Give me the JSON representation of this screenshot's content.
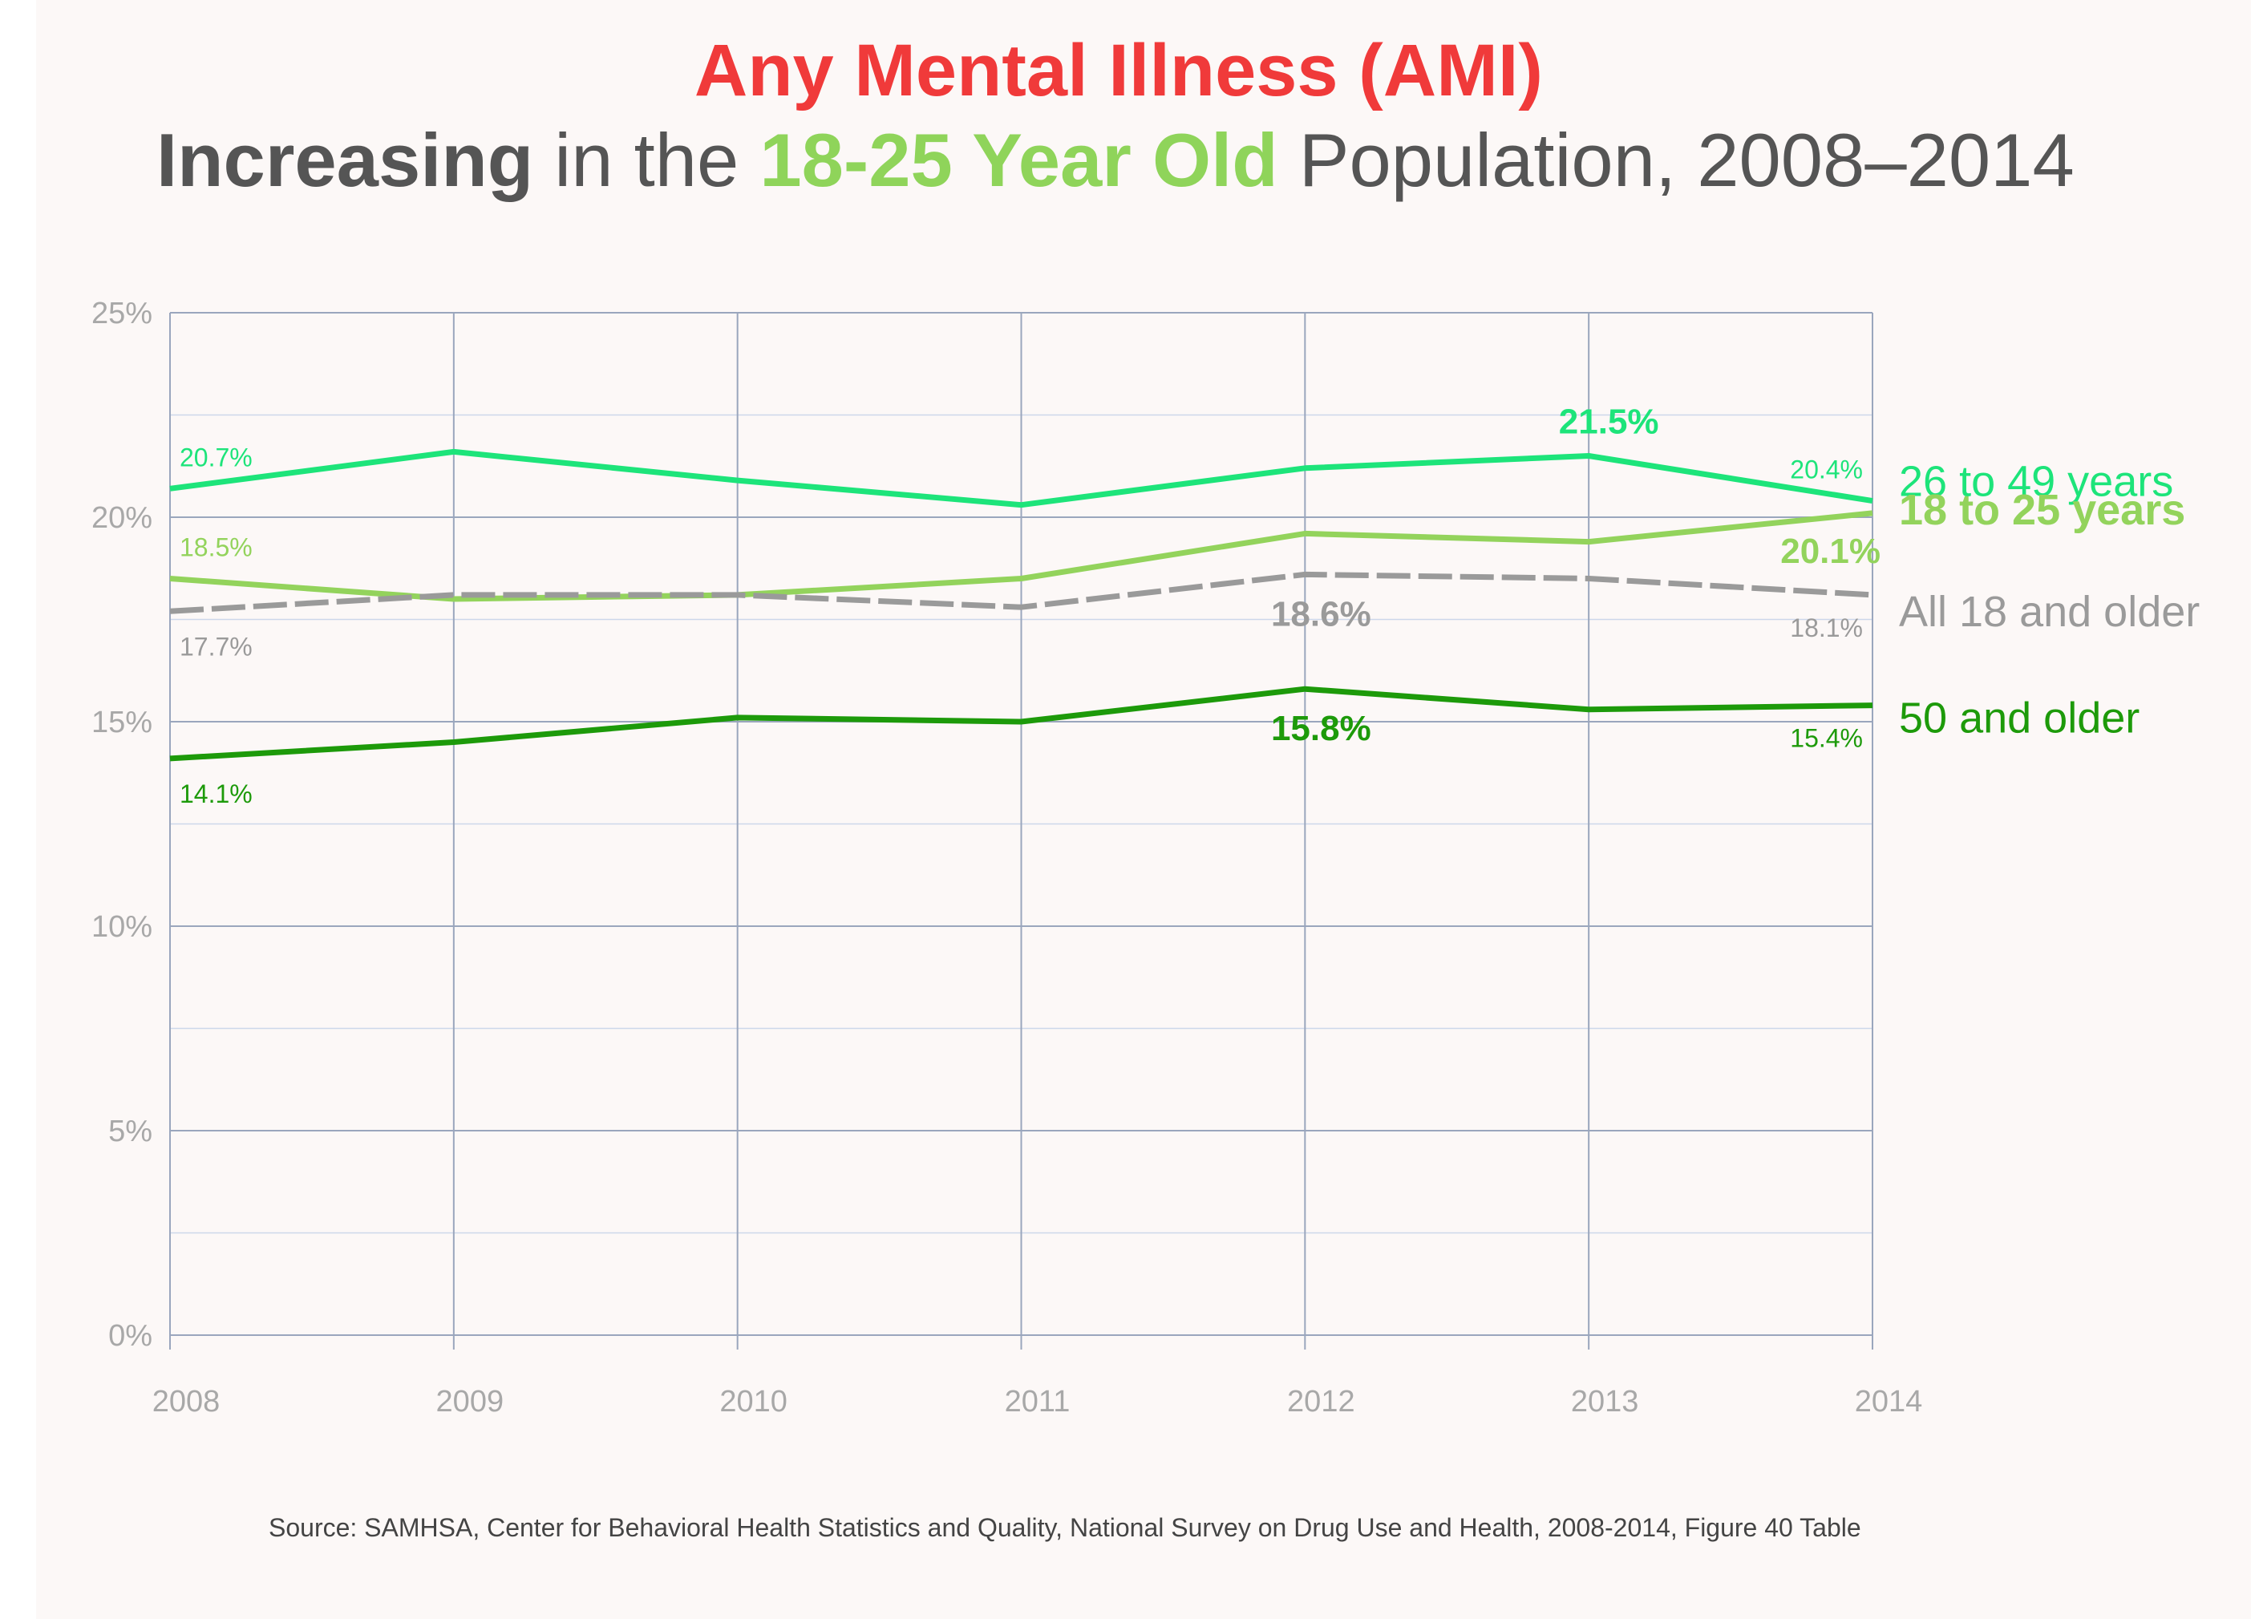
{
  "header": {
    "title": "Any Mental Illness (AMI)",
    "subtitle_part1": "Increasing",
    "subtitle_part2": " in the ",
    "subtitle_part3": "18-25 Year Old",
    "subtitle_part4": " Population, 2008–2014"
  },
  "source": "Source: SAMHSA, Center for Behavioral Health Statistics and Quality, National Survey on Drug Use and Health, 2008-2014,  Figure 40 Table",
  "chart_data": {
    "type": "line",
    "x": [
      "2008",
      "2009",
      "2010",
      "2011",
      "2012",
      "2013",
      "2014"
    ],
    "ylim": [
      0,
      25
    ],
    "yticks": [
      "0%",
      "5%",
      "10%",
      "15%",
      "20%",
      "25%"
    ],
    "grid": true,
    "series": [
      {
        "name": "26 to 49 years",
        "color": "#1de47a",
        "dash": false,
        "values": [
          20.7,
          21.6,
          20.9,
          20.3,
          21.2,
          21.5,
          20.4
        ],
        "labels": [
          {
            "index": 0,
            "text": "20.7%",
            "bold": false,
            "pos": "above-right"
          },
          {
            "index": 5,
            "text": "21.5%",
            "bold": true,
            "pos": "above"
          },
          {
            "index": 6,
            "text": "20.4%",
            "bold": false,
            "pos": "above-left"
          }
        ]
      },
      {
        "name": "18 to 25 years",
        "color": "#93d35c",
        "dash": false,
        "values": [
          18.5,
          18.0,
          18.1,
          18.5,
          19.6,
          19.4,
          20.1
        ],
        "labels": [
          {
            "index": 0,
            "text": "18.5%",
            "bold": false,
            "pos": "above-right"
          },
          {
            "index": 6,
            "text": "20.1%",
            "bold": true,
            "pos": "below-left"
          }
        ]
      },
      {
        "name": "All 18 and older",
        "color": "#9a9a9a",
        "dash": true,
        "values": [
          17.7,
          18.1,
          18.1,
          17.8,
          18.6,
          18.5,
          18.1
        ],
        "labels": [
          {
            "index": 0,
            "text": "17.7%",
            "bold": false,
            "pos": "below-right"
          },
          {
            "index": 4,
            "text": "18.6%",
            "bold": true,
            "pos": "below"
          },
          {
            "index": 6,
            "text": "18.1%",
            "bold": false,
            "pos": "below-left"
          }
        ]
      },
      {
        "name": "50 and older",
        "color": "#1d9a0a",
        "dash": false,
        "values": [
          14.1,
          14.5,
          15.1,
          15.0,
          15.8,
          15.3,
          15.4
        ],
        "labels": [
          {
            "index": 0,
            "text": "14.1%",
            "bold": false,
            "pos": "below-right"
          },
          {
            "index": 4,
            "text": "15.8%",
            "bold": true,
            "pos": "below"
          },
          {
            "index": 6,
            "text": "15.4%",
            "bold": false,
            "pos": "below-left"
          }
        ]
      }
    ]
  }
}
